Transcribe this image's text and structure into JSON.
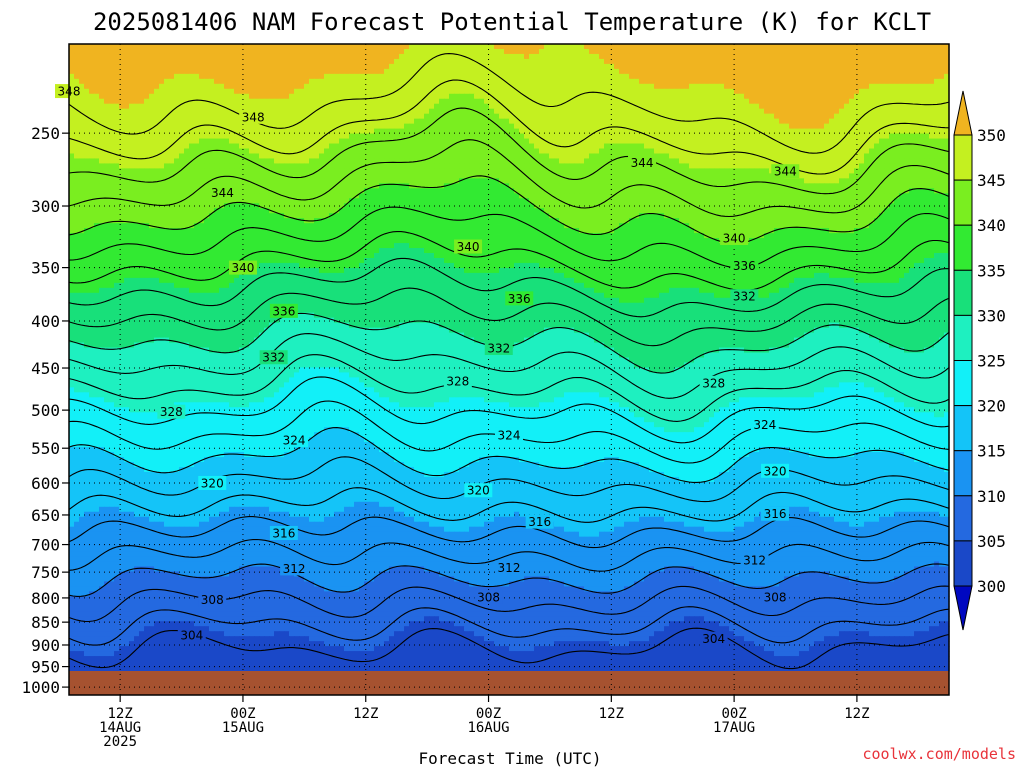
{
  "title": "2025081406 NAM Forecast Potential Temperature (K) for KCLT",
  "credit": "coolwx.com/models",
  "credit_color": "#e8333a",
  "chart_data": {
    "type": "contour",
    "title": "2025081406 NAM Forecast Potential Temperature (K) for KCLT",
    "xlabel": "Forecast Time (UTC)",
    "ylabel": "",
    "y_scale": "log",
    "ylim": [
      1020,
      200
    ],
    "y_ticks": [
      250,
      300,
      350,
      400,
      450,
      500,
      550,
      600,
      650,
      700,
      750,
      800,
      850,
      900,
      950,
      1000
    ],
    "x_ticks": [
      {
        "time": "2025-08-14 12Z",
        "lines": [
          "12Z",
          "14AUG",
          "2025"
        ]
      },
      {
        "time": "2025-08-15 00Z",
        "lines": [
          "00Z",
          "15AUG"
        ]
      },
      {
        "time": "2025-08-15 12Z",
        "lines": [
          "12Z"
        ]
      },
      {
        "time": "2025-08-16 00Z",
        "lines": [
          "00Z",
          "16AUG"
        ]
      },
      {
        "time": "2025-08-16 12Z",
        "lines": [
          "12Z"
        ]
      },
      {
        "time": "2025-08-17 00Z",
        "lines": [
          "00Z",
          "17AUG"
        ]
      },
      {
        "time": "2025-08-17 12Z",
        "lines": [
          "12Z"
        ]
      }
    ],
    "grid": true,
    "colorbar": {
      "levels": [
        300,
        305,
        310,
        315,
        320,
        325,
        330,
        335,
        340,
        345,
        350
      ],
      "labels": [
        "300",
        "305",
        "310",
        "315",
        "320",
        "325",
        "330",
        "335",
        "340",
        "345",
        "350"
      ],
      "colors": [
        "#1a48c8",
        "#2469e0",
        "#1a93f2",
        "#14c4f8",
        "#12f0f8",
        "#1ef0c0",
        "#18e07a",
        "#32ea32",
        "#7aee20",
        "#c4f020",
        "#ffff20",
        "#f0b420"
      ],
      "below_color": "#0008c0",
      "above_color": "#f0b420"
    },
    "ground_color": "#a65230",
    "contour_labels": [
      {
        "value": 348,
        "time": "2025-08-14 07Z",
        "pressure": 225
      },
      {
        "value": 348,
        "time": "2025-08-15 01Z",
        "pressure": 240
      },
      {
        "value": 344,
        "time": "2025-08-14 22Z",
        "pressure": 290
      },
      {
        "value": 344,
        "time": "2025-08-16 15Z",
        "pressure": 269
      },
      {
        "value": 344,
        "time": "2025-08-17 05Z",
        "pressure": 275
      },
      {
        "value": 340,
        "time": "2025-08-15 00Z",
        "pressure": 350
      },
      {
        "value": 340,
        "time": "2025-08-15 22Z",
        "pressure": 332
      },
      {
        "value": 340,
        "time": "2025-08-17 00Z",
        "pressure": 325
      },
      {
        "value": 336,
        "time": "2025-08-15 04Z",
        "pressure": 390
      },
      {
        "value": 336,
        "time": "2025-08-16 03Z",
        "pressure": 378
      },
      {
        "value": 336,
        "time": "2025-08-17 01Z",
        "pressure": 348
      },
      {
        "value": 332,
        "time": "2025-08-15 03Z",
        "pressure": 438
      },
      {
        "value": 332,
        "time": "2025-08-16 01Z",
        "pressure": 428
      },
      {
        "value": 332,
        "time": "2025-08-17 01Z",
        "pressure": 376
      },
      {
        "value": 328,
        "time": "2025-08-14 17Z",
        "pressure": 502
      },
      {
        "value": 328,
        "time": "2025-08-15 21Z",
        "pressure": 465
      },
      {
        "value": 328,
        "time": "2025-08-16 22Z",
        "pressure": 467
      },
      {
        "value": 324,
        "time": "2025-08-15 05Z",
        "pressure": 539
      },
      {
        "value": 324,
        "time": "2025-08-16 02Z",
        "pressure": 532
      },
      {
        "value": 324,
        "time": "2025-08-17 03Z",
        "pressure": 518
      },
      {
        "value": 320,
        "time": "2025-08-14 21Z",
        "pressure": 600
      },
      {
        "value": 320,
        "time": "2025-08-15 23Z",
        "pressure": 611
      },
      {
        "value": 320,
        "time": "2025-08-17 04Z",
        "pressure": 582
      },
      {
        "value": 316,
        "time": "2025-08-15 04Z",
        "pressure": 680
      },
      {
        "value": 316,
        "time": "2025-08-16 05Z",
        "pressure": 661
      },
      {
        "value": 316,
        "time": "2025-08-17 04Z",
        "pressure": 648
      },
      {
        "value": 312,
        "time": "2025-08-15 05Z",
        "pressure": 743
      },
      {
        "value": 312,
        "time": "2025-08-16 02Z",
        "pressure": 741
      },
      {
        "value": 312,
        "time": "2025-08-17 02Z",
        "pressure": 728
      },
      {
        "value": 308,
        "time": "2025-08-14 21Z",
        "pressure": 803
      },
      {
        "value": 308,
        "time": "2025-08-16 00Z",
        "pressure": 798
      },
      {
        "value": 308,
        "time": "2025-08-17 04Z",
        "pressure": 798
      },
      {
        "value": 304,
        "time": "2025-08-14 19Z",
        "pressure": 878
      },
      {
        "value": 304,
        "time": "2025-08-16 22Z",
        "pressure": 886
      }
    ]
  }
}
